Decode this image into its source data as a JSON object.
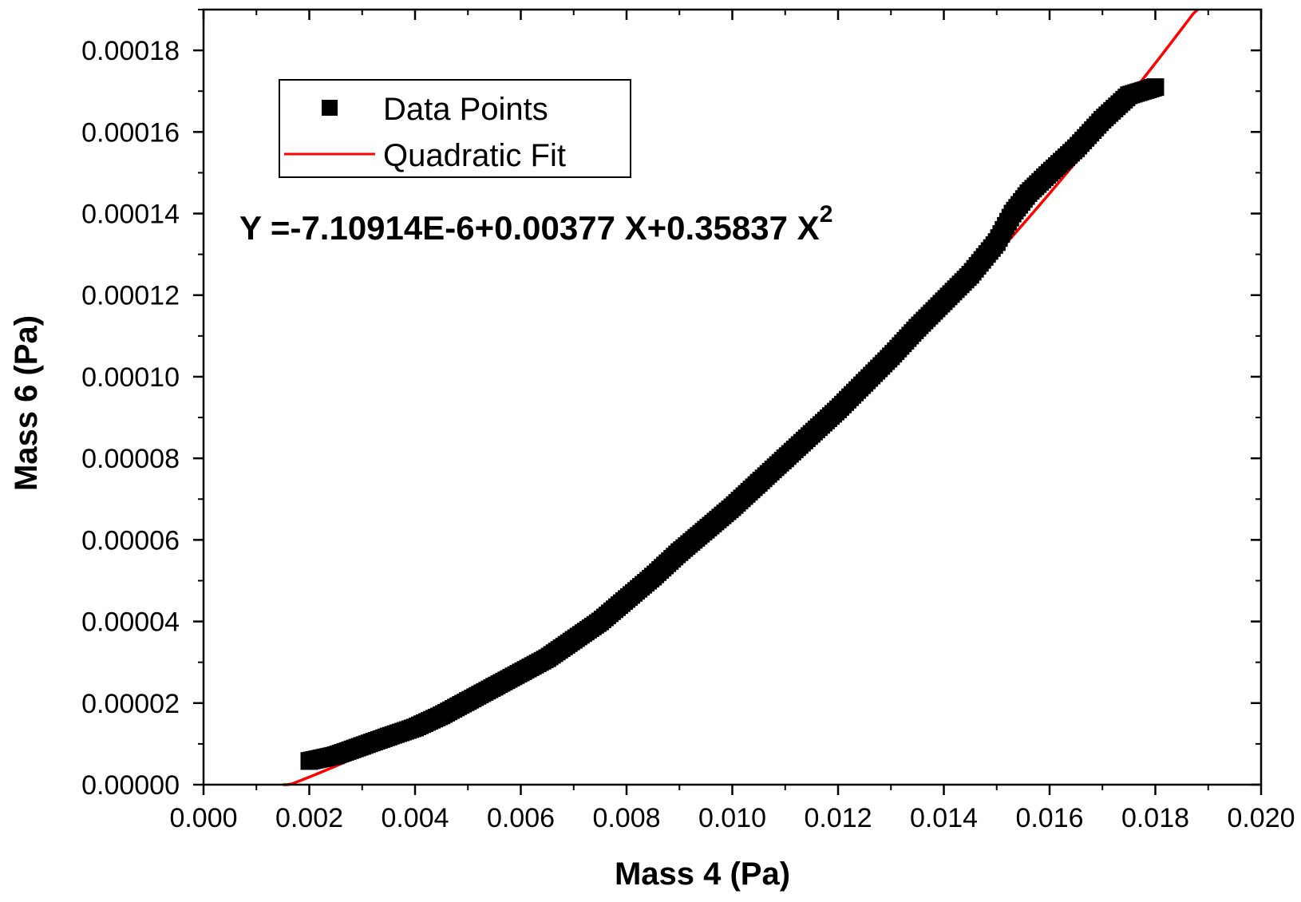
{
  "chart_data": {
    "type": "scatter",
    "xlabel": "Mass 4 (Pa)",
    "ylabel": "Mass 6 (Pa)",
    "xlim": [
      0.0,
      0.02
    ],
    "ylim": [
      0.0,
      0.00019
    ],
    "x_ticks": [
      "0.000",
      "0.002",
      "0.004",
      "0.006",
      "0.008",
      "0.010",
      "0.012",
      "0.014",
      "0.016",
      "0.018",
      "0.020"
    ],
    "y_ticks": [
      "0.00000",
      "0.00002",
      "0.00004",
      "0.00006",
      "0.00008",
      "0.00010",
      "0.00012",
      "0.00014",
      "0.00016",
      "0.00018"
    ],
    "x_tick_values": [
      0.0,
      0.002,
      0.004,
      0.006,
      0.008,
      0.01,
      0.012,
      0.014,
      0.016,
      0.018,
      0.02
    ],
    "y_tick_values": [
      0.0,
      2e-05,
      4e-05,
      6e-05,
      8e-05,
      0.0001,
      0.00012,
      0.00014,
      0.00016,
      0.00018
    ],
    "legend": {
      "position": "top-left",
      "items": [
        "Data Points",
        "Quadratic Fit"
      ]
    },
    "annotation": {
      "text": "Y =-7.10914E-6+0.00377 X+0.35837 X",
      "superscript": "2"
    },
    "series": [
      {
        "name": "Data Points",
        "kind": "scatter",
        "color": "#000000",
        "x": [
          0.002,
          0.0025,
          0.003,
          0.0035,
          0.004,
          0.0045,
          0.005,
          0.0055,
          0.006,
          0.0065,
          0.007,
          0.0075,
          0.008,
          0.0085,
          0.009,
          0.0095,
          0.01,
          0.0105,
          0.011,
          0.0115,
          0.012,
          0.0125,
          0.013,
          0.0135,
          0.014,
          0.0145,
          0.015,
          0.0153,
          0.0156,
          0.016,
          0.0165,
          0.017,
          0.0175,
          0.018
        ],
        "y": [
          5.8e-06,
          7.2e-06,
          9.5e-06,
          1.18e-05,
          1.4e-05,
          1.7e-05,
          2.05e-05,
          2.4e-05,
          2.75e-05,
          3.1e-05,
          3.55e-05,
          4e-05,
          4.55e-05,
          5.1e-05,
          5.7e-05,
          6.25e-05,
          6.8e-05,
          7.4e-05,
          8e-05,
          8.6e-05,
          9.2e-05,
          9.85e-05,
          0.000105,
          0.000112,
          0.0001185,
          0.000125,
          0.000133,
          0.00014,
          0.000145,
          0.00015,
          0.000156,
          0.000163,
          0.000169,
          0.000171
        ]
      },
      {
        "name": "Quadratic Fit",
        "kind": "line",
        "color": "#ff0000",
        "coefficients": [
          -7.10914e-06,
          0.00377,
          0.35837
        ],
        "x_range": [
          0.0015,
          0.0188
        ]
      }
    ]
  }
}
